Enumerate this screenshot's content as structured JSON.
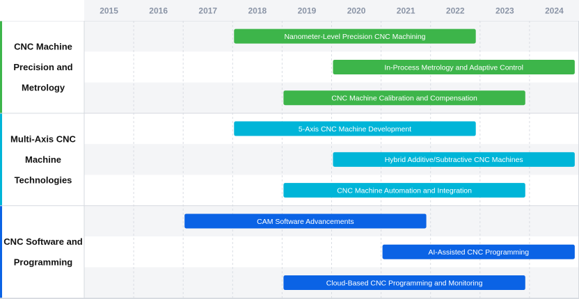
{
  "chart_data": {
    "type": "gantt",
    "years": [
      "2015",
      "2016",
      "2017",
      "2018",
      "2019",
      "2020",
      "2021",
      "2022",
      "2023",
      "2024"
    ],
    "groups": [
      {
        "label": "CNC Machine Precision and Metrology",
        "label_lines": [
          "CNC Machine",
          "Precision and",
          "Metrology"
        ],
        "color": "#3db54a",
        "tasks": [
          {
            "name": "Nanometer-Level Precision CNC Machining",
            "start": 2018.0,
            "end": 2022.9
          },
          {
            "name": "In-Process Metrology and Adaptive Control",
            "start": 2020.0,
            "end": 2024.9
          },
          {
            "name": "CNC Machine Calibration and Compensation",
            "start": 2019.0,
            "end": 2023.9
          }
        ]
      },
      {
        "label": "Multi-Axis CNC Machine Technologies",
        "label_lines": [
          "Multi-Axis CNC",
          "Machine",
          "Technologies"
        ],
        "color": "#00b5d8",
        "tasks": [
          {
            "name": "5-Axis CNC Machine Development",
            "start": 2018.0,
            "end": 2022.9
          },
          {
            "name": "Hybrid Additive/Subtractive CNC Machines",
            "start": 2020.0,
            "end": 2024.9
          },
          {
            "name": "CNC Machine Automation and Integration",
            "start": 2019.0,
            "end": 2023.9
          }
        ]
      },
      {
        "label": "CNC Software and Programming",
        "label_lines": [
          "CNC Software and",
          "Programming"
        ],
        "color": "#0b63e5",
        "tasks": [
          {
            "name": "CAM Software Advancements",
            "start": 2017.0,
            "end": 2021.9
          },
          {
            "name": "AI-Assisted CNC Programming",
            "start": 2021.0,
            "end": 2024.9
          },
          {
            "name": "Cloud-Based CNC Programming and Monitoring",
            "start": 2019.0,
            "end": 2023.9
          }
        ]
      }
    ]
  }
}
